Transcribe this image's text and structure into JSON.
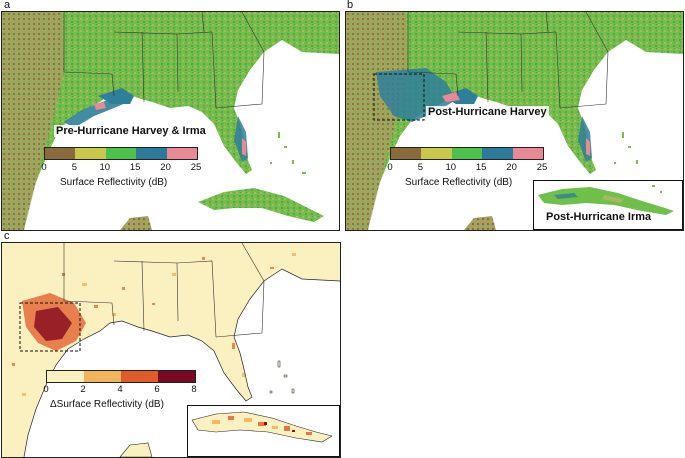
{
  "panels": {
    "a": {
      "label": "a",
      "title": "Pre-Hurricane Harvey & Irma",
      "colorbar": {
        "ticks": [
          "0",
          "5",
          "10",
          "15",
          "20",
          "25"
        ],
        "colors": [
          "#8b6a3c",
          "#c8c84a",
          "#4cc24c",
          "#2b7a9a",
          "#e88a95"
        ],
        "label": "Surface Reflectivity (dB)"
      }
    },
    "b": {
      "label": "b",
      "title": "Post-Hurricane Harvey",
      "inset_title": "Post-Hurricane Irma",
      "colorbar": {
        "ticks": [
          "0",
          "5",
          "10",
          "15",
          "20",
          "25"
        ],
        "colors": [
          "#8b6a3c",
          "#c8c84a",
          "#4cc24c",
          "#2b7a9a",
          "#e88a95"
        ],
        "label": "Surface Reflectivity (dB)"
      }
    },
    "c": {
      "label": "c",
      "colorbar": {
        "ticks": [
          "0",
          "2",
          "4",
          "6",
          "8"
        ],
        "colors": [
          "#fbf0c0",
          "#f0b45a",
          "#e05a2a",
          "#7a0a22"
        ],
        "label": "ΔSurface Reflectivity (dB)"
      }
    }
  },
  "colors": {
    "land_green": "#6fbf4a",
    "land_olive": "#a8b85a",
    "land_brown": "#9c7a4c",
    "wetland_blue": "#2f7f9a",
    "water": "#ffffff",
    "delta_land": "#fbf0c0",
    "delta_high": "#8a1020"
  }
}
